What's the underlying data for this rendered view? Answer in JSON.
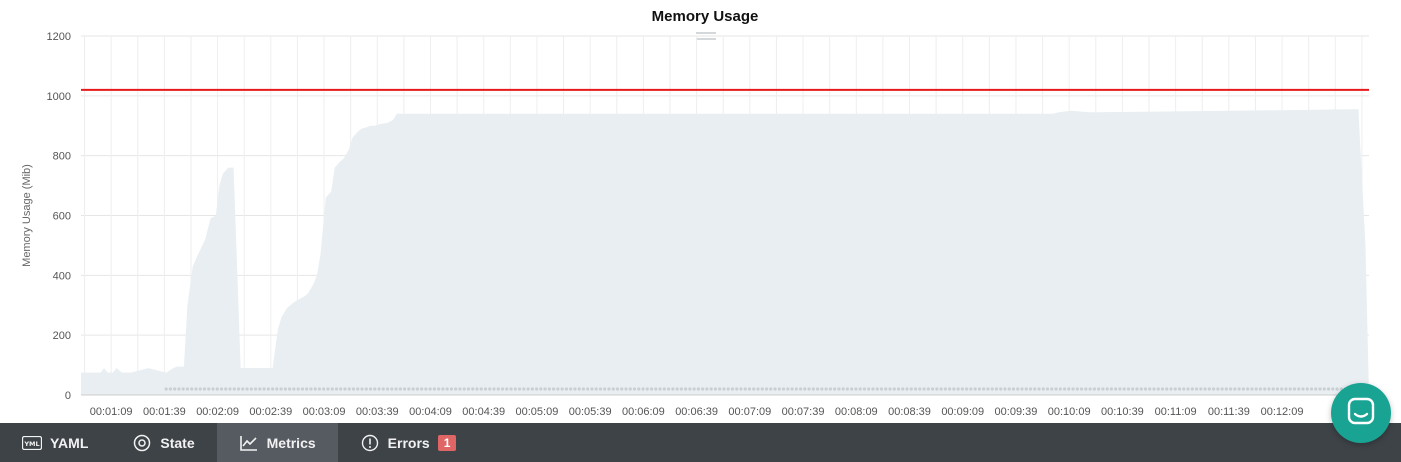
{
  "chart_data": {
    "type": "area",
    "title": "Memory Usage",
    "ylabel": "Memory Usage (Mib)",
    "xlabel": "",
    "ylim": [
      0,
      1200
    ],
    "yticks": [
      0,
      200,
      400,
      600,
      800,
      1000,
      1200
    ],
    "xticks": [
      "00:01:09",
      "00:01:39",
      "00:02:09",
      "00:02:39",
      "00:03:09",
      "00:03:39",
      "00:04:09",
      "00:04:39",
      "00:05:09",
      "00:05:39",
      "00:06:09",
      "00:06:39",
      "00:07:09",
      "00:07:39",
      "00:08:09",
      "00:08:39",
      "00:09:09",
      "00:09:39",
      "00:10:09",
      "00:10:39",
      "00:11:09",
      "00:11:39",
      "00:12:09"
    ],
    "xrange_seconds": [
      52,
      778
    ],
    "grid": true,
    "limit_line": {
      "value": 1020,
      "color": "#e8191a"
    },
    "series": [
      {
        "fill_color": "#e8eef1",
        "t": [
          52,
          63,
          65,
          67,
          70,
          72,
          75,
          80,
          90,
          100,
          104,
          106,
          108,
          110,
          112,
          115,
          118,
          122,
          125,
          128,
          130,
          132,
          135,
          138,
          142,
          145,
          148,
          150,
          152,
          155,
          160,
          163,
          165,
          168,
          170,
          172,
          175,
          178,
          180,
          183,
          185,
          187,
          190,
          193,
          195,
          198,
          200,
          203,
          205,
          208,
          210,
          213,
          215,
          218,
          220,
          225,
          228,
          230,
          240,
          250,
          260,
          270,
          300,
          350,
          400,
          450,
          500,
          550,
          600,
          603,
          610,
          620,
          625,
          700,
          770,
          772,
          776,
          778
        ],
        "values": [
          75,
          75,
          90,
          75,
          75,
          90,
          75,
          75,
          90,
          75,
          90,
          95,
          95,
          95,
          300,
          430,
          470,
          520,
          590,
          600,
          700,
          740,
          760,
          760,
          90,
          90,
          90,
          90,
          90,
          90,
          90,
          220,
          260,
          290,
          300,
          310,
          320,
          330,
          340,
          370,
          400,
          470,
          660,
          680,
          760,
          780,
          790,
          820,
          860,
          880,
          890,
          895,
          900,
          900,
          905,
          910,
          920,
          940,
          940,
          940,
          940,
          940,
          940,
          940,
          940,
          940,
          940,
          940,
          940,
          945,
          950,
          945,
          945,
          950,
          955,
          955,
          500,
          0
        ]
      },
      {
        "name": "",
        "style": "dots",
        "color": "#c9cfd3",
        "t_start": 100,
        "t_end": 778,
        "value": 20
      }
    ]
  },
  "chart_ui": {
    "drag_handle": "drag-handle"
  },
  "tabs": [
    {
      "label": "YAML",
      "icon": "yaml-icon",
      "active": false
    },
    {
      "label": "State",
      "icon": "target-icon",
      "active": false
    },
    {
      "label": "Metrics",
      "icon": "chart-line-icon",
      "active": true
    },
    {
      "label": "Errors",
      "icon": "alert-circle-icon",
      "active": false,
      "badge": "1"
    }
  ],
  "chat": {
    "icon": "chat-icon",
    "color": "#19a393"
  }
}
